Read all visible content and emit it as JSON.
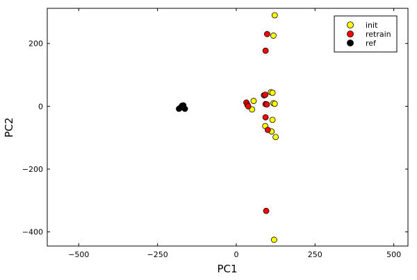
{
  "chart_data": {
    "type": "scatter",
    "title": "",
    "xlabel": "PC1",
    "ylabel": "PC2",
    "xlim": [
      -600,
      545
    ],
    "ylim": [
      -445,
      312
    ],
    "xticks": [
      -500,
      -250,
      0,
      250,
      500
    ],
    "yticks": [
      -400,
      -200,
      0,
      200
    ],
    "xtick_labels": [
      "−500",
      "−250",
      "0",
      "250",
      "500"
    ],
    "ytick_labels": [
      "−400",
      "−200",
      "0",
      "200"
    ],
    "grid": false,
    "legend_position": "top-right",
    "series": [
      {
        "name": "init",
        "color": "#ffff00",
        "points": [
          {
            "x": 122,
            "y": 290
          },
          {
            "x": 118,
            "y": 225
          },
          {
            "x": 110,
            "y": 45
          },
          {
            "x": 115,
            "y": 43
          },
          {
            "x": 55,
            "y": 17
          },
          {
            "x": 118,
            "y": 10
          },
          {
            "x": 122,
            "y": 8
          },
          {
            "x": 50,
            "y": -10
          },
          {
            "x": 115,
            "y": -43
          },
          {
            "x": 92,
            "y": -63
          },
          {
            "x": 112,
            "y": -80
          },
          {
            "x": 125,
            "y": -98
          },
          {
            "x": 120,
            "y": -425
          }
        ]
      },
      {
        "name": "retrain",
        "color": "#ff0000",
        "points": [
          {
            "x": 98,
            "y": 230
          },
          {
            "x": 93,
            "y": 177
          },
          {
            "x": 88,
            "y": 35
          },
          {
            "x": 92,
            "y": 37
          },
          {
            "x": 32,
            "y": 12
          },
          {
            "x": 35,
            "y": 5
          },
          {
            "x": 38,
            "y": 0
          },
          {
            "x": 93,
            "y": 7
          },
          {
            "x": 97,
            "y": 6
          },
          {
            "x": 93,
            "y": -35
          },
          {
            "x": 100,
            "y": -75
          },
          {
            "x": 95,
            "y": -333
          }
        ]
      },
      {
        "name": "ref",
        "color": "#000000",
        "points": [
          {
            "x": -178,
            "y": -5
          },
          {
            "x": -172,
            "y": 2
          },
          {
            "x": -168,
            "y": 3
          },
          {
            "x": -163,
            "y": -8
          },
          {
            "x": -182,
            "y": -8
          }
        ]
      }
    ]
  }
}
